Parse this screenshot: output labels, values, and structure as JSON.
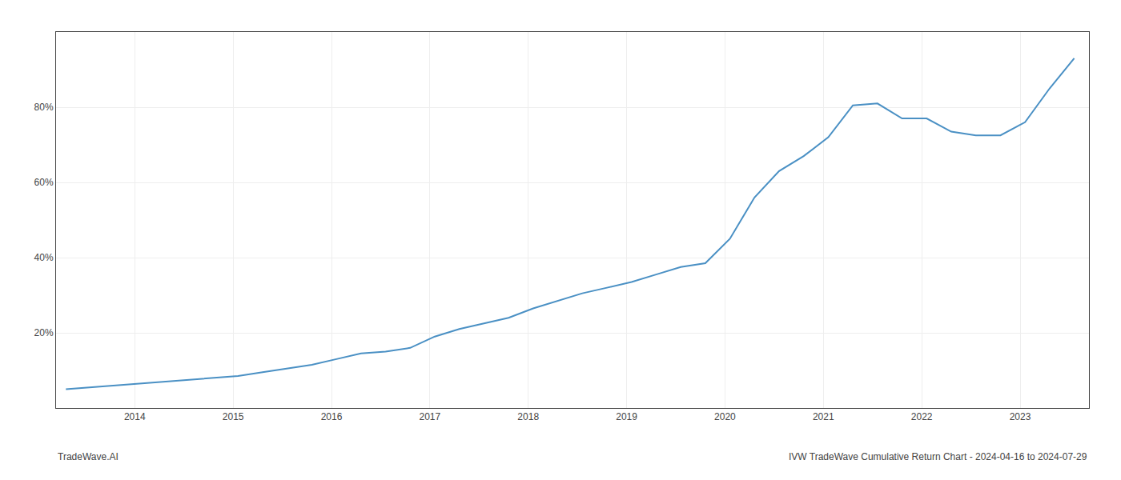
{
  "chart_data": {
    "type": "line",
    "x": [
      2013.3,
      2013.55,
      2013.8,
      2014.05,
      2014.3,
      2014.55,
      2014.8,
      2015.05,
      2015.3,
      2015.55,
      2015.8,
      2016.05,
      2016.3,
      2016.55,
      2016.8,
      2017.05,
      2017.3,
      2017.55,
      2017.8,
      2018.05,
      2018.3,
      2018.55,
      2018.8,
      2019.05,
      2019.3,
      2019.55,
      2019.8,
      2020.05,
      2020.3,
      2020.55,
      2020.8,
      2021.05,
      2021.3,
      2021.55,
      2021.8,
      2022.05,
      2022.3,
      2022.55,
      2022.8,
      2023.05,
      2023.3,
      2023.55
    ],
    "values": [
      5.0,
      5.5,
      6.0,
      6.5,
      7.0,
      7.5,
      8.0,
      8.5,
      9.5,
      10.5,
      11.5,
      13.0,
      14.5,
      15.0,
      16.0,
      19.0,
      21.0,
      22.5,
      24.0,
      26.5,
      28.5,
      30.5,
      32.0,
      33.5,
      35.5,
      37.5,
      38.5,
      45.0,
      56.0,
      63.0,
      67.0,
      72.0,
      80.5,
      81.0,
      77.0,
      77.0,
      73.5,
      72.5,
      72.5,
      76.0,
      85.0,
      93.0
    ],
    "color": "#4a90c4",
    "xlim": [
      2013.2,
      2023.7
    ],
    "xticks": [
      2014,
      2015,
      2016,
      2017,
      2018,
      2019,
      2020,
      2021,
      2022,
      2023
    ],
    "ylim": [
      0,
      100
    ],
    "yticks": [
      {
        "value": 20,
        "label": "20%"
      },
      {
        "value": 40,
        "label": "40%"
      },
      {
        "value": 60,
        "label": "60%"
      },
      {
        "value": 80,
        "label": "80%"
      }
    ],
    "grid": true,
    "annotations": [
      "TradeWave.AI",
      "IVW TradeWave Cumulative Return Chart - 2024-04-16 to 2024-07-29"
    ]
  }
}
